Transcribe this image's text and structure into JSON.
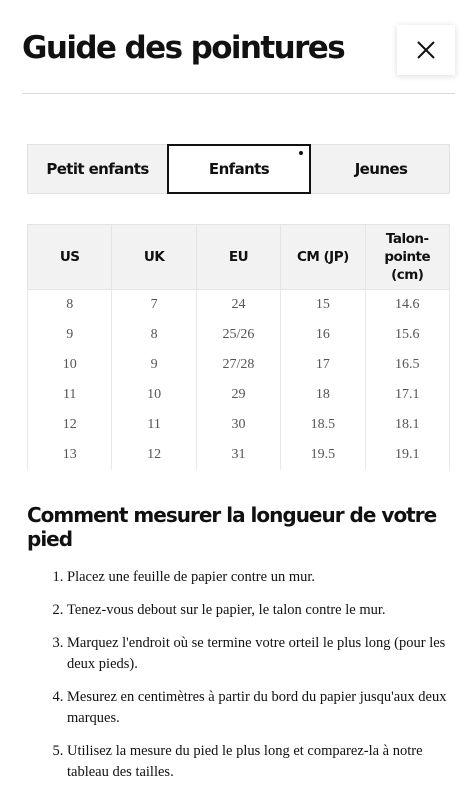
{
  "header": {
    "title": "Guide des pointures"
  },
  "tabs": [
    "Petit enfants",
    "Enfants",
    "Jeunes"
  ],
  "selected_tab": 1,
  "table": {
    "columns": [
      "US",
      "UK",
      "EU",
      "CM (JP)",
      "Talon-pointe (cm)"
    ],
    "rows": [
      [
        "8",
        "7",
        "24",
        "15",
        "14.6"
      ],
      [
        "9",
        "8",
        "25/26",
        "16",
        "15.6"
      ],
      [
        "10",
        "9",
        "27/28",
        "17",
        "16.5"
      ],
      [
        "11",
        "10",
        "29",
        "18",
        "17.1"
      ],
      [
        "12",
        "11",
        "30",
        "18.5",
        "18.1"
      ],
      [
        "13",
        "12",
        "31",
        "19.5",
        "19.1"
      ]
    ]
  },
  "instructions": {
    "title": "Comment mesurer la longueur de votre pied",
    "steps": [
      "Placez une feuille de papier contre un mur.",
      "Tenez-vous debout sur le papier, le talon contre le mur.",
      "Marquez l'endroit où se termine votre orteil le plus long (pour les deux pieds).",
      "Mesurez en centimètres à partir du bord du papier jusqu'aux deux marques.",
      "Utilisez la mesure du pied le plus long et comparez-la à notre tableau des tailles."
    ]
  }
}
